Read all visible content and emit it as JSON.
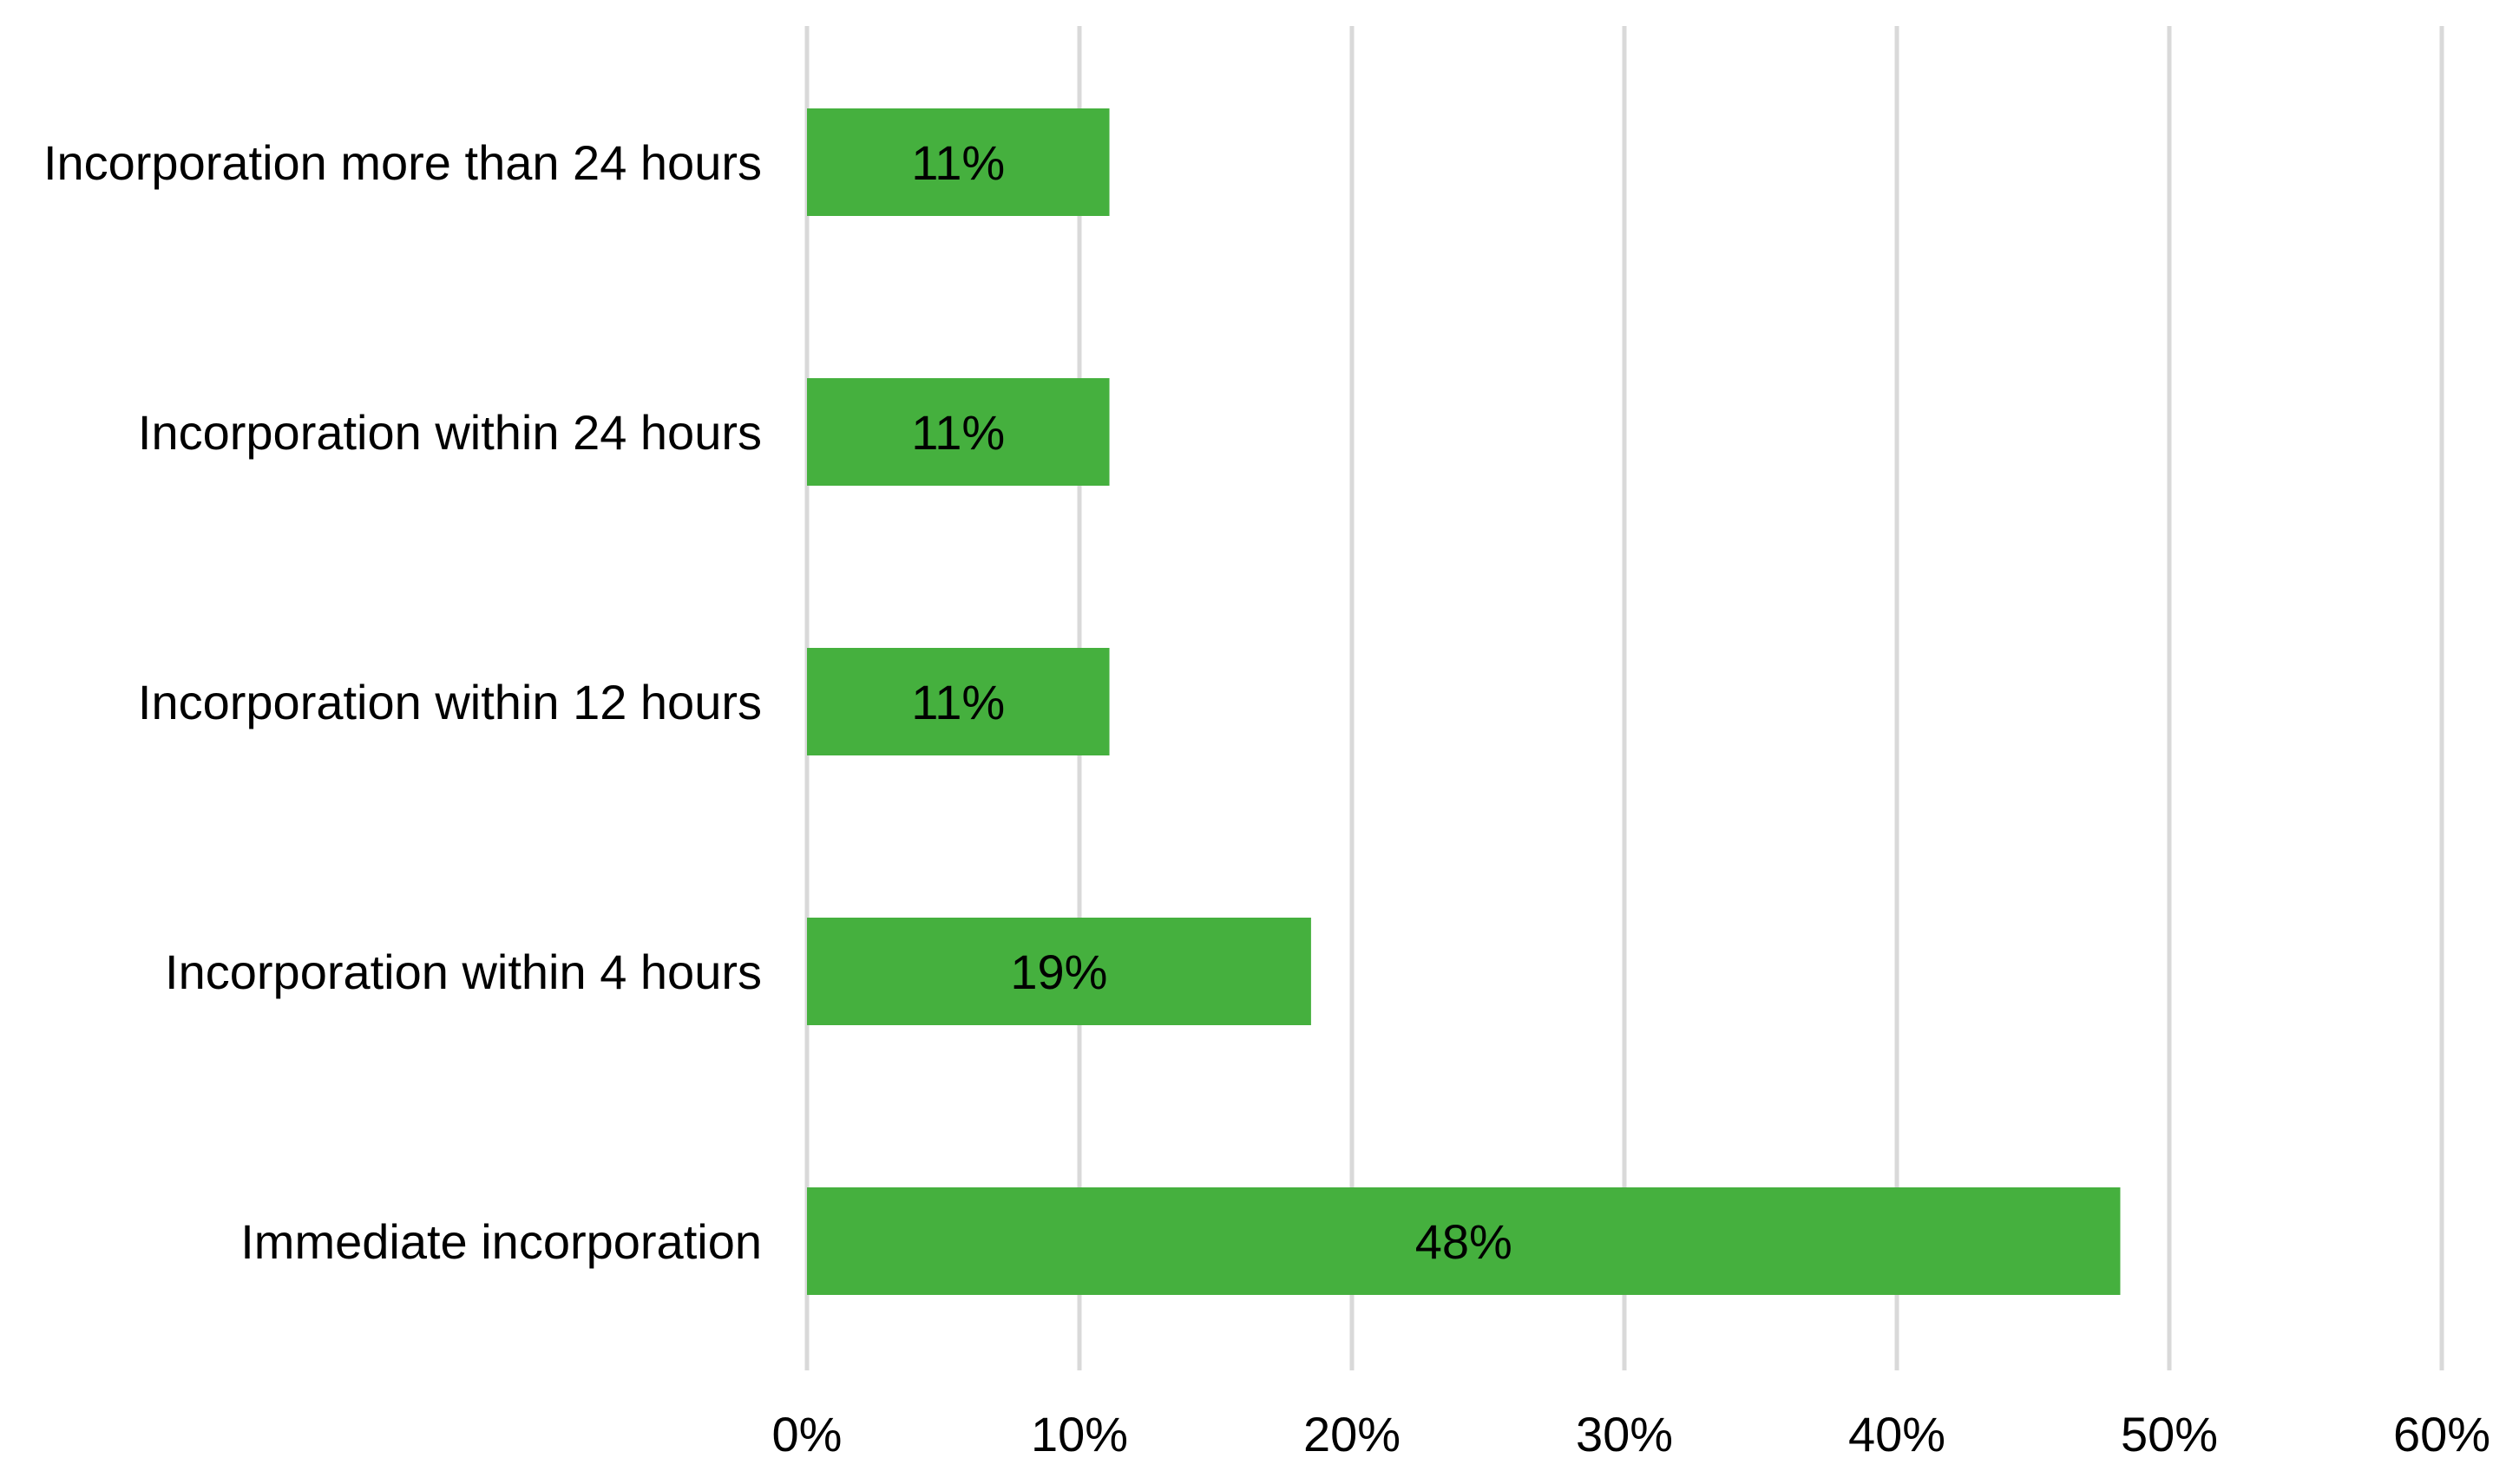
{
  "chart_data": {
    "type": "bar",
    "orientation": "horizontal",
    "title": "",
    "xlabel": "",
    "ylabel": "",
    "categories": [
      "Incorporation more than 24 hours",
      "Incorporation within 24 hours",
      "Incorporation within 12 hours",
      "Incorporation within 4 hours",
      "Immediate incorporation"
    ],
    "values": [
      11,
      11,
      11,
      19,
      48
    ],
    "plotted_values": [
      11.1,
      11.1,
      11.1,
      18.5,
      48.2
    ],
    "data_labels": [
      "11%",
      "11%",
      "11%",
      "19%",
      "48%"
    ],
    "xlim": [
      0,
      60
    ],
    "x_ticks": [
      0,
      10,
      20,
      30,
      40,
      50,
      60
    ],
    "x_tick_labels": [
      "0%",
      "10%",
      "20%",
      "30%",
      "40%",
      "50%",
      "60%"
    ],
    "grid": "vertical",
    "legend": "none",
    "colors": {
      "bar": "#45B03E",
      "grid": "#D9D9D9",
      "text": "#000000"
    }
  }
}
